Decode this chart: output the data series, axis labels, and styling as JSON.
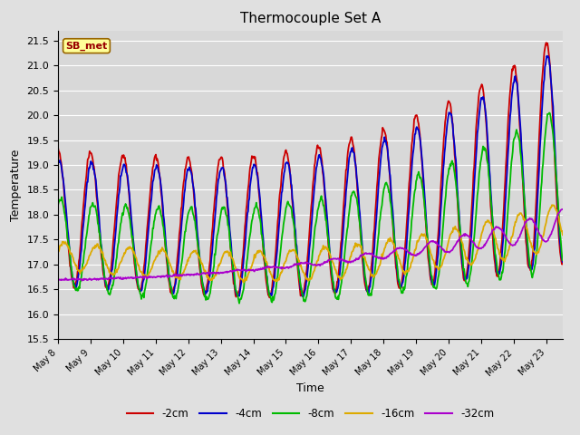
{
  "title": "Thermocouple Set A",
  "xlabel": "Time",
  "ylabel": "Temperature",
  "ylim": [
    15.5,
    21.7
  ],
  "xlim": [
    0,
    15.5
  ],
  "fig_bg": "#e0e0e0",
  "plot_bg": "#d8d8d8",
  "legend_label": "SB_met",
  "series": {
    "-2cm": {
      "color": "#cc0000",
      "lw": 1.3
    },
    "-4cm": {
      "color": "#0000cc",
      "lw": 1.3
    },
    "-8cm": {
      "color": "#00bb00",
      "lw": 1.3
    },
    "-16cm": {
      "color": "#ddaa00",
      "lw": 1.3
    },
    "-32cm": {
      "color": "#aa00cc",
      "lw": 1.3
    }
  },
  "x_ticks": [
    0,
    1,
    2,
    3,
    4,
    5,
    6,
    7,
    8,
    9,
    10,
    11,
    12,
    13,
    14,
    15
  ],
  "x_tick_labels": [
    "May 8",
    "May 9",
    "May 10",
    "May 11",
    "May 12",
    "May 13",
    "May 14",
    "May 15",
    "May 16",
    "May 17",
    "May 18",
    "May 19",
    "May 20",
    "May 21",
    "May 22",
    "May 23"
  ],
  "y_ticks": [
    15.5,
    16.0,
    16.5,
    17.0,
    17.5,
    18.0,
    18.5,
    19.0,
    19.5,
    20.0,
    20.5,
    21.0,
    21.5
  ]
}
